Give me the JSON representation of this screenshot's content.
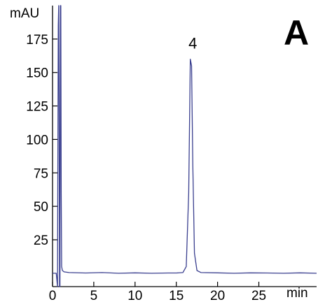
{
  "chart_data": {
    "type": "line",
    "panel_label": "A",
    "y_unit": "mAU",
    "x_unit": "min",
    "xlim": [
      0,
      32
    ],
    "ylim": [
      -10,
      200
    ],
    "x_ticks": [
      0,
      5,
      10,
      15,
      20,
      25
    ],
    "y_ticks": [
      25,
      50,
      75,
      100,
      125,
      150,
      175
    ],
    "grid": false,
    "line_color": "#3a3f8f",
    "series": [
      {
        "x": [
          0,
          0.45,
          0.6,
          0.7,
          0.75,
          0.8,
          0.85,
          0.9,
          0.95,
          1.0,
          1.05,
          1.1,
          1.2,
          1.4,
          2,
          4,
          6,
          8,
          10,
          12,
          14,
          15,
          15.8,
          16.2,
          16.5,
          16.7,
          16.85,
          17.0,
          17.2,
          17.5,
          18,
          20,
          22,
          24,
          26,
          28,
          30,
          32
        ],
        "y": [
          0,
          0,
          -10,
          185,
          210,
          120,
          -10,
          -10,
          210,
          210,
          60,
          5,
          2,
          1,
          0.5,
          0.2,
          0.5,
          0,
          0.3,
          0,
          0.2,
          0.2,
          0.5,
          5,
          60,
          160,
          155,
          80,
          15,
          2,
          0.5,
          0.3,
          0,
          0.3,
          0.2,
          0,
          0.3,
          0
        ]
      }
    ],
    "annotations": [
      {
        "text": "4",
        "x": 17.0,
        "y": 168
      }
    ]
  }
}
